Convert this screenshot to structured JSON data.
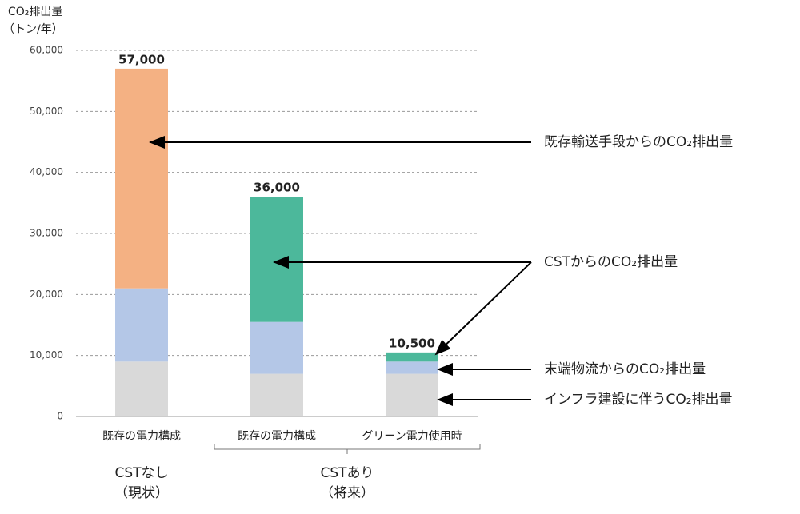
{
  "chart_data": {
    "type": "stacked-bar",
    "y_label": [
      "CO₂排出量",
      "（トン/年）"
    ],
    "categories": [
      "既存の電力構成",
      "既存の電力構成",
      "グリーン電力使用時"
    ],
    "groups": [
      [
        "CSTなし",
        "（現状）"
      ],
      [
        "CSTあり",
        "（将来）"
      ]
    ],
    "series": [
      {
        "name": "インフラ建設に伴うCO₂排出量",
        "color": "#d9d9d9",
        "values": [
          9000,
          7000,
          7000
        ]
      },
      {
        "name": "末端物流からのCO₂排出量",
        "color": "#b4c7e7",
        "values": [
          12000,
          8500,
          2000
        ]
      },
      {
        "name": "CSTからのCO₂排出量",
        "color": "#4cb89b",
        "values": [
          null,
          20500,
          1500
        ]
      },
      {
        "name": "既存輸送手段からのCO₂排出量",
        "color": "#f4b183",
        "values": [
          36000,
          null,
          null
        ]
      }
    ],
    "totals": {
      "values": [
        57000,
        36000,
        10500
      ],
      "value_labels": [
        "57,000",
        "36,000",
        "10,500"
      ]
    },
    "ylim": [
      0,
      60000
    ],
    "yticks": [
      0,
      {
        "value": 10000,
        "label": "10,000"
      },
      {
        "value": 20000,
        "label": "20,000"
      },
      {
        "value": 30000,
        "label": "30,000"
      },
      {
        "value": 40000,
        "label": "40,000"
      },
      {
        "value": 50000,
        "label": "50,000"
      },
      {
        "value": 60000,
        "label": "60,000"
      }
    ],
    "grid": true
  }
}
